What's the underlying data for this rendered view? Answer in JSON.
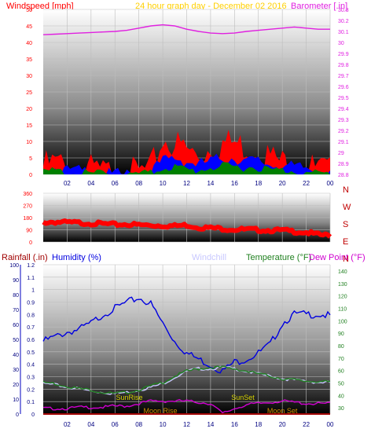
{
  "header": {
    "windspeed_title": "Windspeed [mph]",
    "period_title": "24 hour graph day - December 02 2016",
    "barometer_title": "Barometer [.in]"
  },
  "lower_header": {
    "rainfall_title": "Rainfall (.in)",
    "humidity_title": "Humidity (%)",
    "windchill_title": "Windchill",
    "temperature_title": "Temperature (°F)",
    "dewpoint_title": "Dew Point (°F)"
  },
  "compass_labels": [
    "N",
    "W",
    "S",
    "E",
    "N"
  ],
  "annotations": {
    "sunrise": "SunRise",
    "sunset": "SunSet",
    "moonrise": "Moon Rise",
    "moonset": "Moon Set"
  },
  "colors": {
    "windspeed": "#ff0000",
    "wind_avg": "#0000ff",
    "wind_low": "#008000",
    "barometer": "#e020e0",
    "direction": "#ff0000",
    "humidity": "#0000e0",
    "windchill": "#c8c8ff",
    "temperature": "#208020",
    "dewpoint": "#d000d0",
    "rainfall": "#a00000",
    "sun_label": "#d4d000",
    "moon_label": "#d09000",
    "period_title": "#ffd000"
  },
  "chart_data": [
    {
      "type": "area",
      "title": "Windspeed [mph]",
      "x_ticks": [
        "02",
        "04",
        "06",
        "08",
        "10",
        "12",
        "14",
        "16",
        "18",
        "20",
        "22",
        "00"
      ],
      "x_hours": [
        0,
        1,
        2,
        3,
        4,
        5,
        6,
        7,
        8,
        9,
        10,
        11,
        12,
        13,
        14,
        15,
        16,
        17,
        18,
        19,
        20,
        21,
        22,
        23,
        24
      ],
      "ylim_left": [
        0,
        50
      ],
      "y_ticks_left": [
        "0",
        "5",
        "10",
        "15",
        "20",
        "25",
        "30",
        "35",
        "40",
        "45",
        "50"
      ],
      "ylim_right": [
        28.8,
        30.3
      ],
      "y_ticks_right": [
        "28.8",
        "28.9",
        "29",
        "29.1",
        "29.2",
        "29.3",
        "29.4",
        "29.5",
        "29.6",
        "29.7",
        "29.8",
        "29.9",
        "30",
        "30.1",
        "30.2",
        "30.3"
      ],
      "series": [
        {
          "name": "Windspeed [mph]",
          "axis": "left",
          "style": "gust",
          "values": [
            5,
            6,
            5,
            4,
            4,
            3,
            3,
            3,
            3,
            4,
            13,
            12,
            10,
            8,
            11,
            12,
            12,
            11,
            10,
            8,
            6,
            7,
            5,
            4,
            3
          ]
        },
        {
          "name": "",
          "axis": "left",
          "style": "avg",
          "values": [
            2,
            3,
            2,
            2,
            2,
            1,
            1,
            1,
            1,
            2,
            5,
            6,
            5,
            4,
            5,
            6,
            6,
            5,
            5,
            4,
            4,
            3,
            3,
            2,
            2
          ]
        },
        {
          "name": "",
          "axis": "left",
          "style": "low",
          "values": [
            1,
            2,
            1,
            1,
            1,
            1,
            0,
            0,
            1,
            1,
            3,
            3,
            2,
            2,
            3,
            3,
            3,
            3,
            3,
            2,
            2,
            2,
            1,
            1,
            1
          ]
        },
        {
          "name": "Barometer [.in]",
          "axis": "right",
          "style": "line",
          "values": [
            30.07,
            30.075,
            30.08,
            30.085,
            30.09,
            30.095,
            30.1,
            30.11,
            30.13,
            30.15,
            30.16,
            30.15,
            30.12,
            30.1,
            30.085,
            30.08,
            30.085,
            30.1,
            30.11,
            30.12,
            30.13,
            30.14,
            30.13,
            30.12,
            30.12
          ]
        }
      ]
    },
    {
      "type": "scatter",
      "title": "Wind direction",
      "x_ticks": [],
      "x_hours": [
        0,
        1,
        2,
        3,
        4,
        5,
        6,
        7,
        8,
        9,
        10,
        11,
        12,
        13,
        14,
        15,
        16,
        17,
        18,
        19,
        20,
        21,
        22,
        23,
        24
      ],
      "ylim": [
        0,
        360
      ],
      "y_ticks": [
        "0",
        "90",
        "180",
        "270",
        "360"
      ],
      "values": [
        152,
        155,
        150,
        148,
        145,
        140,
        135,
        138,
        132,
        130,
        128,
        125,
        132,
        115,
        110,
        105,
        100,
        98,
        96,
        94,
        92,
        85,
        78,
        60,
        55
      ]
    },
    {
      "type": "line",
      "title": "",
      "x_ticks": [
        "02",
        "04",
        "06",
        "08",
        "10",
        "12",
        "14",
        "16",
        "18",
        "20",
        "22",
        "00"
      ],
      "x_hours": [
        0,
        1,
        2,
        3,
        4,
        5,
        6,
        7,
        8,
        9,
        10,
        11,
        12,
        13,
        14,
        15,
        16,
        17,
        18,
        19,
        20,
        21,
        22,
        23,
        24
      ],
      "ylim_left": [
        0,
        100
      ],
      "y_ticks_left": [
        "0",
        "10",
        "20",
        "30",
        "40",
        "50",
        "60",
        "70",
        "80",
        "90",
        "100"
      ],
      "ylim_mid": [
        0,
        1.2
      ],
      "y_ticks_mid": [
        "0",
        "0.1",
        "0.2",
        "0.3",
        "0.4",
        "0.5",
        "0.6",
        "0.7",
        "0.8",
        "0.9",
        "1",
        "1.1",
        "1.2"
      ],
      "ylim_right": [
        25,
        145
      ],
      "y_ticks_right": [
        "30",
        "40",
        "50",
        "60",
        "70",
        "80",
        "90",
        "100",
        "110",
        "120",
        "130",
        "140"
      ],
      "series": [
        {
          "name": "Humidity (%)",
          "axis": "left",
          "values": [
            50,
            53,
            56,
            58,
            62,
            68,
            72,
            76,
            79,
            75,
            62,
            50,
            42,
            38,
            34,
            30,
            36,
            38,
            42,
            48,
            62,
            68,
            68,
            68,
            67
          ]
        },
        {
          "name": "Windchill",
          "axis": "right",
          "values": [
            50,
            49,
            47,
            46,
            44,
            43,
            42,
            43,
            45,
            47,
            50,
            55,
            60,
            62,
            62,
            63,
            62,
            60,
            58,
            56,
            54,
            53,
            52,
            51,
            51
          ]
        },
        {
          "name": "Temperature (°F)",
          "axis": "right",
          "values": [
            51,
            50,
            48,
            46,
            45,
            43,
            42,
            43,
            45,
            48,
            51,
            56,
            60,
            62,
            63,
            63,
            62,
            60,
            58,
            56,
            54,
            53,
            52,
            52,
            51
          ]
        },
        {
          "name": "Dew Point (°F)",
          "axis": "right",
          "values": [
            30,
            30,
            30,
            31,
            31,
            31,
            32,
            32,
            34,
            36,
            36,
            36,
            36,
            35,
            34,
            26,
            30,
            33,
            34,
            35,
            36,
            35,
            34,
            34,
            34
          ]
        },
        {
          "name": "Rainfall (.in)",
          "axis": "mid",
          "values": [
            0,
            0,
            0,
            0,
            0,
            0,
            0,
            0,
            0,
            0,
            0,
            0,
            0,
            0,
            0,
            0,
            0,
            0,
            0,
            0,
            0,
            0,
            0,
            0,
            0
          ]
        }
      ],
      "events": [
        {
          "label_key": "sunrise",
          "hour": 7.2
        },
        {
          "label_key": "sunset",
          "hour": 16.7
        },
        {
          "label_key": "moonrise",
          "hour": 9.8
        },
        {
          "label_key": "moonset",
          "hour": 20.0
        }
      ]
    }
  ]
}
